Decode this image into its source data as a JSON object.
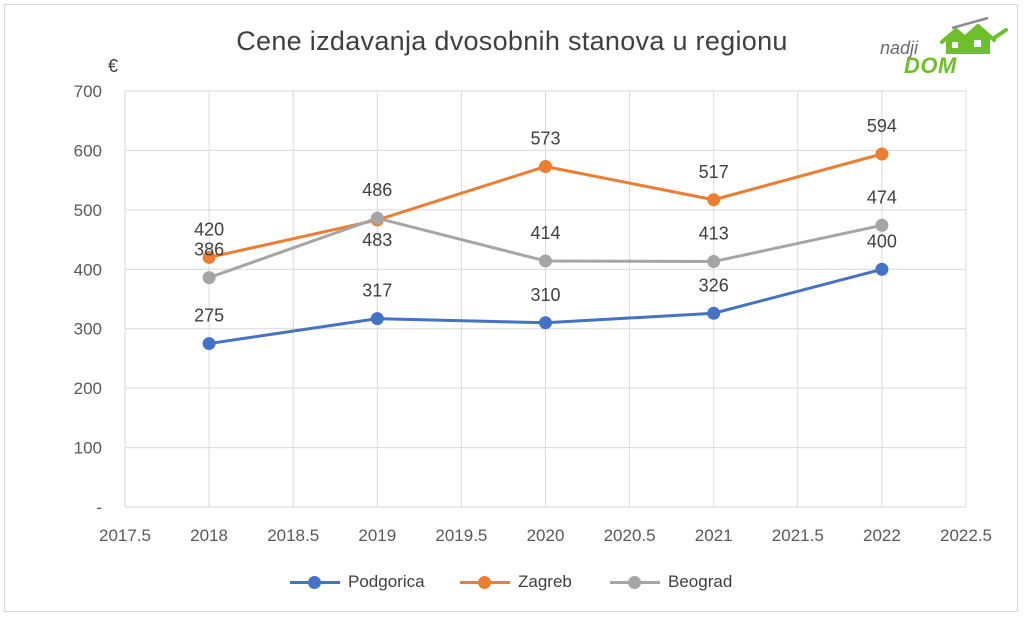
{
  "chart_data": {
    "type": "line",
    "title": "Cene izdavanja dvosobnih stanova u regionu",
    "ylabel": "€",
    "xlabel": "",
    "x": [
      2018,
      2019,
      2020,
      2021,
      2022
    ],
    "xlim": [
      2017.5,
      2022.5
    ],
    "x_ticks": [
      "2017.5",
      "2018",
      "2018.5",
      "2019",
      "2019.5",
      "2020",
      "2020.5",
      "2021",
      "2021.5",
      "2022",
      "2022.5"
    ],
    "ylim": [
      0,
      700
    ],
    "y_ticks": [
      "-",
      "100",
      "200",
      "300",
      "400",
      "500",
      "600",
      "700"
    ],
    "grid": true,
    "legend_position": "bottom",
    "series": [
      {
        "name": "Podgorica",
        "color": "#4472c4",
        "values": [
          275,
          317,
          310,
          326,
          400
        ],
        "labels": [
          "275",
          "317",
          "310",
          "326",
          "400"
        ]
      },
      {
        "name": "Zagreb",
        "color": "#ed7d31",
        "values": [
          420,
          483,
          573,
          517,
          594
        ],
        "labels": [
          "420",
          "483",
          "573",
          "517",
          "594"
        ]
      },
      {
        "name": "Beograd",
        "color": "#a5a5a5",
        "values": [
          386,
          486,
          414,
          413,
          474
        ],
        "labels": [
          "386",
          "486",
          "414",
          "413",
          "474"
        ]
      }
    ]
  },
  "logo": {
    "line1": "nadji",
    "line2": "DOM"
  }
}
